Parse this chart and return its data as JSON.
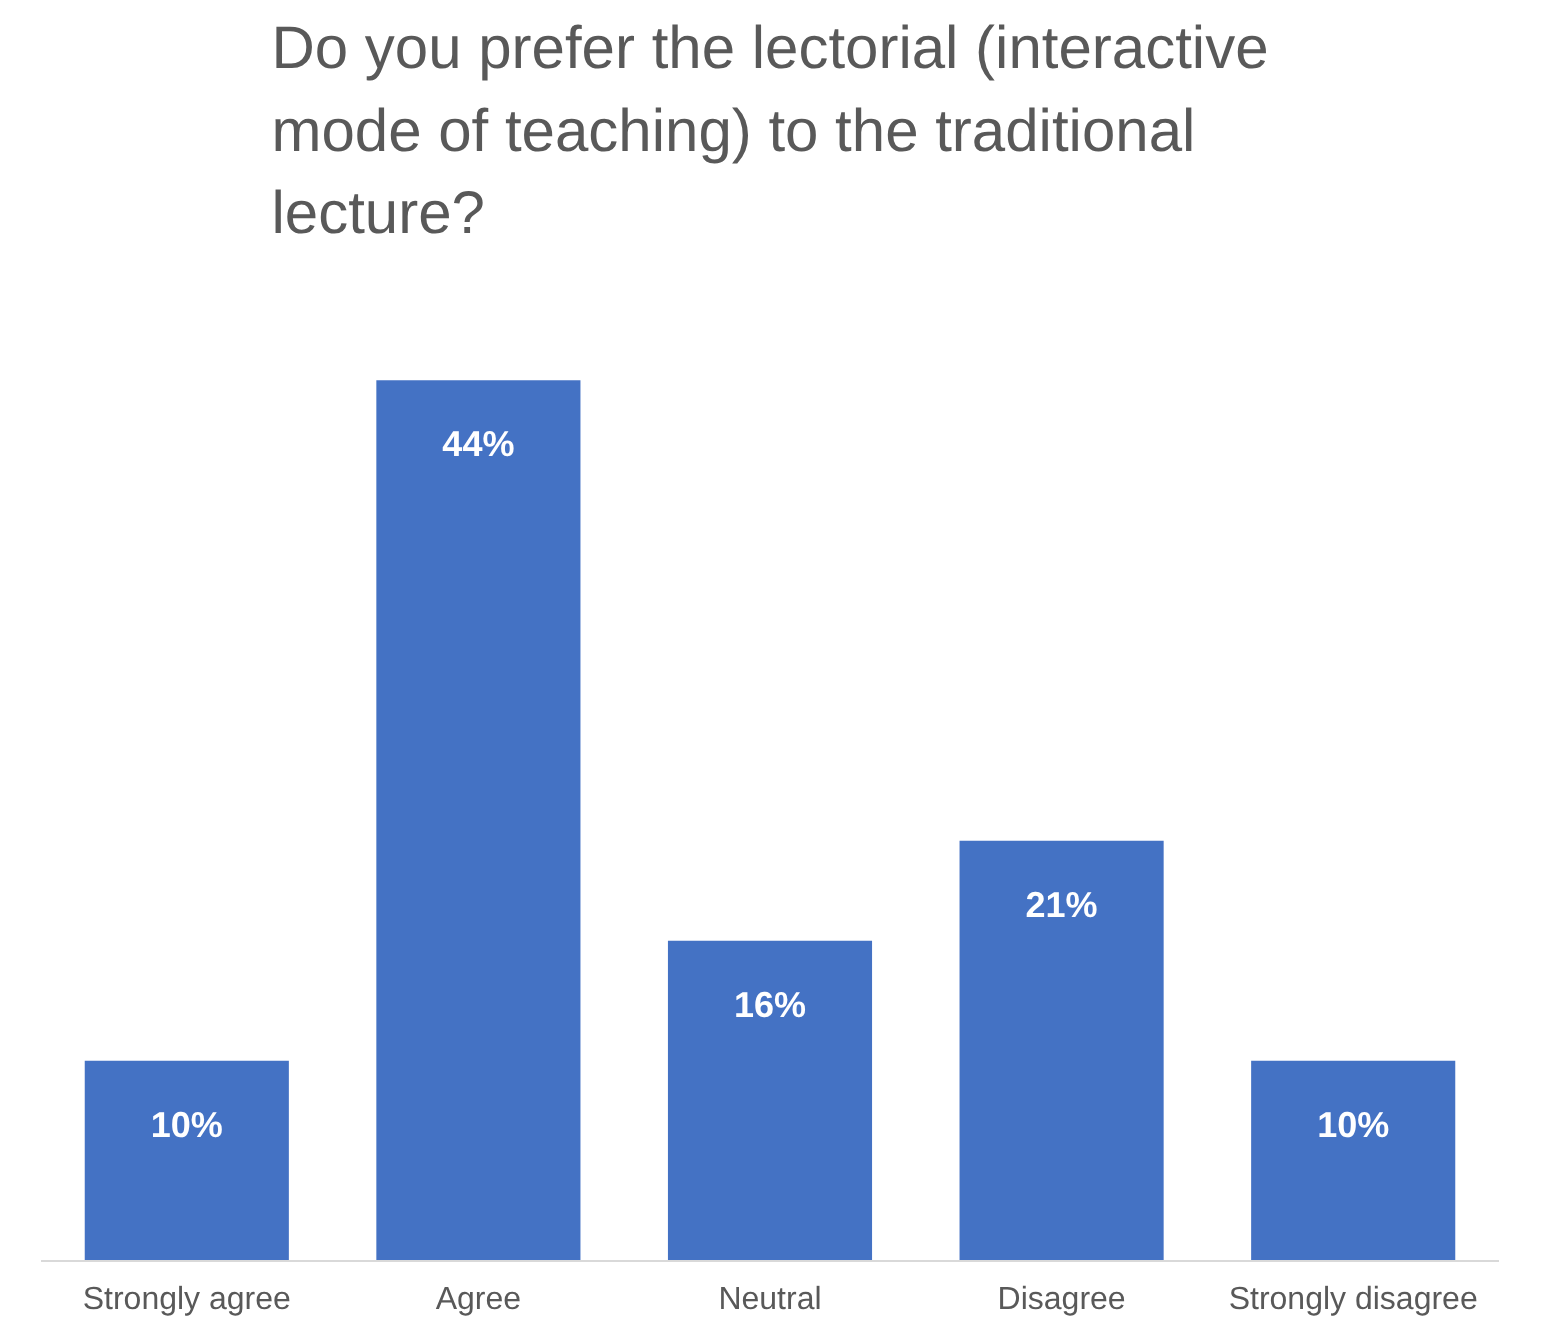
{
  "chart_data": {
    "type": "bar",
    "title": "Do you prefer the lectorial (interactive mode of teaching) to the traditional lecture?",
    "categories": [
      "Strongly agree",
      "Agree",
      "Neutral",
      "Disagree",
      "Strongly disagree"
    ],
    "values": [
      10,
      44,
      16,
      21,
      10
    ],
    "value_labels": [
      "10%",
      "44%",
      "16%",
      "21%",
      "10%"
    ],
    "color": "#4472c4",
    "grid": false
  }
}
